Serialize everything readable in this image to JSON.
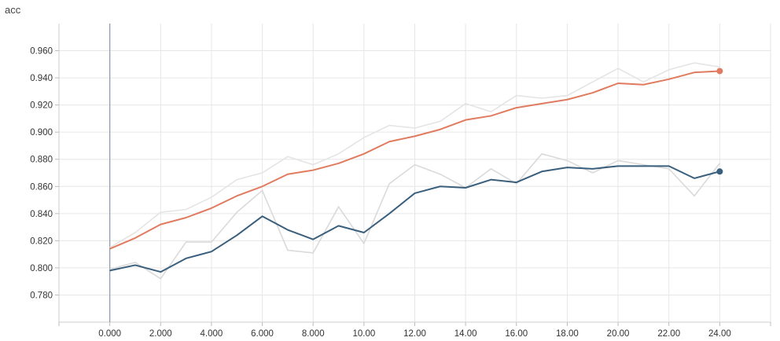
{
  "chart_data": {
    "type": "line",
    "title": "acc",
    "xlabel": "",
    "ylabel": "",
    "xlim": [
      -2,
      26
    ],
    "ylim": [
      0.76,
      0.98
    ],
    "grid": true,
    "legend": "none",
    "x_ticks": [
      0,
      2,
      4,
      6,
      8,
      10,
      12,
      14,
      16,
      18,
      20,
      22,
      24
    ],
    "x_tick_labels": [
      "0.000",
      "2.000",
      "4.000",
      "6.000",
      "8.000",
      "10.00",
      "12.00",
      "14.00",
      "16.00",
      "18.00",
      "20.00",
      "22.00",
      "24.00"
    ],
    "y_ticks": [
      0.78,
      0.8,
      0.82,
      0.84,
      0.86,
      0.88,
      0.9,
      0.92,
      0.94,
      0.96
    ],
    "y_tick_labels": [
      "0.780",
      "0.800",
      "0.820",
      "0.840",
      "0.860",
      "0.880",
      "0.900",
      "0.920",
      "0.940",
      "0.960"
    ],
    "x": [
      0,
      1,
      2,
      3,
      4,
      5,
      6,
      7,
      8,
      9,
      10,
      11,
      12,
      13,
      14,
      15,
      16,
      17,
      18,
      19,
      20,
      21,
      22,
      23,
      24
    ],
    "series": [
      {
        "color": "#e07b5f",
        "raw_color": "#e4e4e4",
        "values": [
          0.814,
          0.822,
          0.832,
          0.837,
          0.844,
          0.853,
          0.86,
          0.869,
          0.872,
          0.877,
          0.884,
          0.893,
          0.897,
          0.902,
          0.909,
          0.912,
          0.918,
          0.921,
          0.924,
          0.929,
          0.936,
          0.935,
          0.939,
          0.944,
          0.945
        ],
        "raw_values": [
          0.815,
          0.826,
          0.841,
          0.843,
          0.852,
          0.865,
          0.87,
          0.882,
          0.876,
          0.884,
          0.896,
          0.905,
          0.903,
          0.908,
          0.921,
          0.915,
          0.927,
          0.925,
          0.927,
          0.937,
          0.947,
          0.937,
          0.946,
          0.951,
          0.948
        ]
      },
      {
        "color": "#3a5f7d",
        "raw_color": "#dadada",
        "values": [
          0.798,
          0.802,
          0.797,
          0.807,
          0.812,
          0.824,
          0.838,
          0.828,
          0.821,
          0.831,
          0.826,
          0.84,
          0.855,
          0.86,
          0.859,
          0.865,
          0.863,
          0.871,
          0.874,
          0.873,
          0.875,
          0.875,
          0.875,
          0.866,
          0.871
        ],
        "raw_values": [
          0.799,
          0.804,
          0.792,
          0.819,
          0.819,
          0.841,
          0.857,
          0.813,
          0.811,
          0.845,
          0.818,
          0.862,
          0.876,
          0.869,
          0.859,
          0.873,
          0.862,
          0.884,
          0.879,
          0.87,
          0.879,
          0.876,
          0.873,
          0.853,
          0.877
        ]
      }
    ]
  }
}
